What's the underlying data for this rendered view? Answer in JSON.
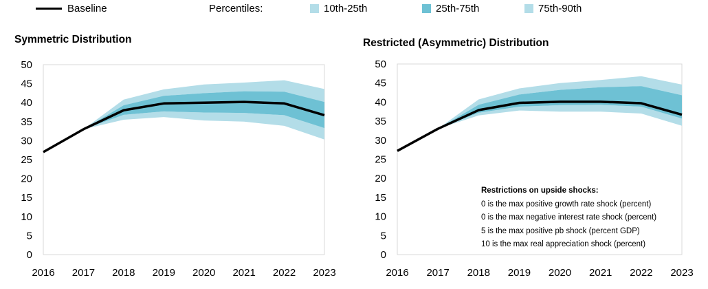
{
  "legend": {
    "baseline_label": "Baseline",
    "percentiles_label": "Percentiles:",
    "items": [
      {
        "label": "10th-25th",
        "color": "#b3dde8"
      },
      {
        "label": "25th-75th",
        "color": "#6ec1d4"
      },
      {
        "label": "75th-90th",
        "color": "#b3dde8"
      }
    ],
    "baseline_color": "#000000"
  },
  "restrictions": {
    "header": "Restrictions on upside shocks:",
    "lines": [
      "0 is the max positive growth rate shock (percent)",
      "0 is the max negative interest rate shock (percent)",
      "5 is the max positive pb shock (percent GDP)",
      "10 is the max real appreciation shock (percent)"
    ]
  },
  "chart_data": [
    {
      "type": "area",
      "title": "Symmetric Distribution",
      "x": [
        "2016",
        "2017",
        "2018",
        "2019",
        "2020",
        "2021",
        "2022",
        "2023"
      ],
      "ylim": [
        0,
        50
      ],
      "yticks": [
        0,
        5,
        10,
        15,
        20,
        25,
        30,
        35,
        40,
        45,
        50
      ],
      "grid": false,
      "baseline": [
        27,
        33,
        38,
        39.8,
        40,
        40.2,
        39.8,
        36.7
      ],
      "bands": {
        "p10": [
          null,
          33,
          35.5,
          36.2,
          35.3,
          35,
          33.9,
          30.3
        ],
        "p25": [
          null,
          33,
          36.8,
          37.7,
          37.4,
          37.3,
          36.7,
          33.3
        ],
        "p75": [
          null,
          33,
          39.3,
          41.8,
          42.5,
          43,
          42.9,
          40.2
        ],
        "p90": [
          null,
          33,
          40.8,
          43.5,
          44.8,
          45.3,
          45.9,
          43.6
        ]
      }
    },
    {
      "type": "area",
      "title": "Restricted (Asymmetric) Distribution",
      "x": [
        "2016",
        "2017",
        "2018",
        "2019",
        "2020",
        "2021",
        "2022",
        "2023"
      ],
      "ylim": [
        0,
        50
      ],
      "yticks": [
        0,
        5,
        10,
        15,
        20,
        25,
        30,
        35,
        40,
        45,
        50
      ],
      "grid": false,
      "baseline": [
        27.2,
        33,
        37.9,
        39.8,
        40.1,
        40.1,
        39.7,
        36.7
      ],
      "bands": {
        "p10": [
          null,
          33,
          36.5,
          37.8,
          37.5,
          37.5,
          37,
          33.8
        ],
        "p25": [
          null,
          33,
          37.2,
          38.8,
          39.2,
          39.3,
          38.8,
          35.7
        ],
        "p75": [
          null,
          33,
          39.3,
          42,
          43.2,
          43.9,
          44.2,
          41.8
        ],
        "p90": [
          null,
          33,
          40.7,
          43.6,
          45,
          45.8,
          46.8,
          44.6
        ]
      }
    }
  ]
}
